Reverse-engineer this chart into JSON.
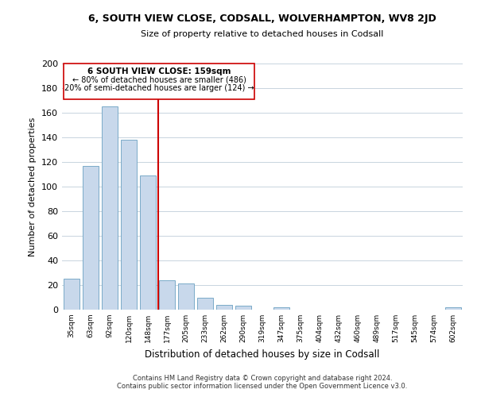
{
  "title": "6, SOUTH VIEW CLOSE, CODSALL, WOLVERHAMPTON, WV8 2JD",
  "subtitle": "Size of property relative to detached houses in Codsall",
  "xlabel": "Distribution of detached houses by size in Codsall",
  "ylabel": "Number of detached properties",
  "bar_labels": [
    "35sqm",
    "63sqm",
    "92sqm",
    "120sqm",
    "148sqm",
    "177sqm",
    "205sqm",
    "233sqm",
    "262sqm",
    "290sqm",
    "319sqm",
    "347sqm",
    "375sqm",
    "404sqm",
    "432sqm",
    "460sqm",
    "489sqm",
    "517sqm",
    "545sqm",
    "574sqm",
    "602sqm"
  ],
  "bar_heights": [
    25,
    117,
    165,
    138,
    109,
    24,
    21,
    10,
    4,
    3,
    0,
    2,
    0,
    0,
    0,
    0,
    0,
    0,
    0,
    0,
    2
  ],
  "bar_color": "#c8d8eb",
  "bar_edge_color": "#7aaac8",
  "property_line_label": "6 SOUTH VIEW CLOSE: 159sqm",
  "annotation_smaller": "← 80% of detached houses are smaller (486)",
  "annotation_larger": "20% of semi-detached houses are larger (124) →",
  "vline_color": "#cc0000",
  "box_color": "#cc0000",
  "ylim": [
    0,
    200
  ],
  "yticks": [
    0,
    20,
    40,
    60,
    80,
    100,
    120,
    140,
    160,
    180,
    200
  ],
  "footnote1": "Contains HM Land Registry data © Crown copyright and database right 2024.",
  "footnote2": "Contains public sector information licensed under the Open Government Licence v3.0.",
  "background_color": "#ffffff",
  "grid_color": "#c8d4de"
}
